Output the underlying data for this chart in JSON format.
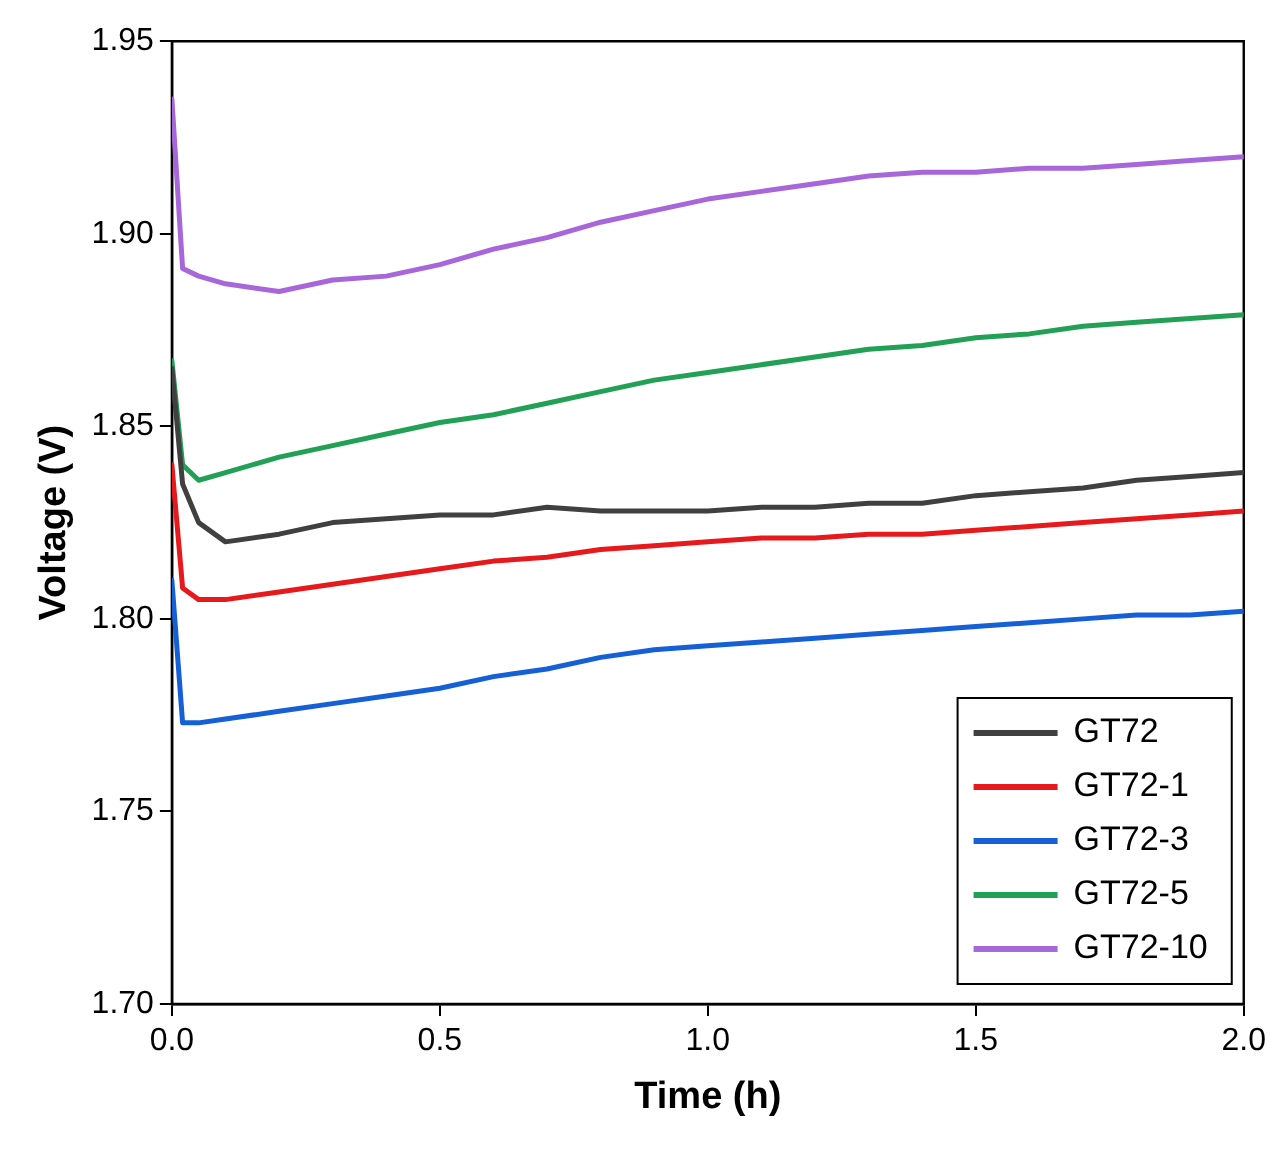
{
  "chart_data": {
    "type": "line",
    "xlabel": "Time (h)",
    "ylabel": "Voltage (V)",
    "xlim": [
      0,
      2
    ],
    "xticks": [
      {
        "value": 0,
        "label": "0.0"
      },
      {
        "value": 0.5,
        "label": "0.5"
      },
      {
        "value": 1,
        "label": "1.0"
      },
      {
        "value": 1.5,
        "label": "1.5"
      },
      {
        "value": 2,
        "label": "2.0"
      }
    ],
    "ylim": [
      1.7,
      1.95
    ],
    "yticks": [
      {
        "value": 1.7,
        "label": "1.70"
      },
      {
        "value": 1.75,
        "label": "1.75"
      },
      {
        "value": 1.8,
        "label": "1.80"
      },
      {
        "value": 1.85,
        "label": "1.85"
      },
      {
        "value": 1.9,
        "label": "1.90"
      },
      {
        "value": 1.95,
        "label": "1.95"
      }
    ],
    "grid": false,
    "legend": "bottom right",
    "marker": "none",
    "line_style": "solid",
    "x": [
      0,
      0.02,
      0.05,
      0.1,
      0.2,
      0.3,
      0.4,
      0.5,
      0.6,
      0.7,
      0.8,
      0.9,
      1.0,
      1.1,
      1.2,
      1.3,
      1.4,
      1.5,
      1.6,
      1.7,
      1.8,
      1.9,
      2.0
    ],
    "series": [
      {
        "name": "GT72",
        "color": "#404040",
        "values": [
          1.865,
          1.835,
          1.825,
          1.82,
          1.822,
          1.825,
          1.826,
          1.827,
          1.827,
          1.829,
          1.828,
          1.828,
          1.828,
          1.829,
          1.829,
          1.83,
          1.83,
          1.832,
          1.833,
          1.834,
          1.836,
          1.837,
          1.838
        ]
      },
      {
        "name": "GT72-1",
        "color": "#e8191c",
        "values": [
          1.84,
          1.808,
          1.805,
          1.805,
          1.807,
          1.809,
          1.811,
          1.813,
          1.815,
          1.816,
          1.818,
          1.819,
          1.82,
          1.821,
          1.821,
          1.822,
          1.822,
          1.823,
          1.824,
          1.825,
          1.826,
          1.827,
          1.828
        ]
      },
      {
        "name": "GT72-3",
        "color": "#1560d6",
        "values": [
          1.81,
          1.773,
          1.773,
          1.774,
          1.776,
          1.778,
          1.78,
          1.782,
          1.785,
          1.787,
          1.79,
          1.792,
          1.793,
          1.794,
          1.795,
          1.796,
          1.797,
          1.798,
          1.799,
          1.8,
          1.801,
          1.801,
          1.802
        ]
      },
      {
        "name": "GT72-5",
        "color": "#22a055",
        "values": [
          1.867,
          1.84,
          1.836,
          1.838,
          1.842,
          1.845,
          1.848,
          1.851,
          1.853,
          1.856,
          1.859,
          1.862,
          1.864,
          1.866,
          1.868,
          1.87,
          1.871,
          1.873,
          1.874,
          1.876,
          1.877,
          1.878,
          1.879
        ]
      },
      {
        "name": "GT72-10",
        "color": "#a766d9",
        "values": [
          1.935,
          1.891,
          1.889,
          1.887,
          1.885,
          1.888,
          1.889,
          1.892,
          1.896,
          1.899,
          1.903,
          1.906,
          1.909,
          1.911,
          1.913,
          1.915,
          1.916,
          1.916,
          1.917,
          1.917,
          1.918,
          1.919,
          1.92
        ]
      }
    ]
  }
}
